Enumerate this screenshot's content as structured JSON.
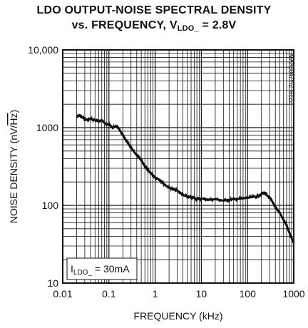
{
  "title": {
    "line1": "LDO OUTPUT-NOISE SPECTRAL DENSITY",
    "line2_prefix": "vs. FREQUENCY, V",
    "line2_sub": "LDO_",
    "line2_suffix": " = 2.8V"
  },
  "watermark": "MAX8847Y/Z toc22",
  "annotation": {
    "prefix": "I",
    "sub": "LDO_",
    "suffix": " = 30mA"
  },
  "chart_data": {
    "type": "line",
    "title": "LDO OUTPUT-NOISE SPECTRAL DENSITY vs. FREQUENCY, VLDO_ = 2.8V",
    "xlabel": "FREQUENCY (kHz)",
    "ylabel": "NOISE DENSITY (nV/√Hz)",
    "x_scale": "log",
    "y_scale": "log",
    "xlim": [
      0.01,
      1000
    ],
    "ylim": [
      10,
      10000
    ],
    "x_ticks": [
      "0.01",
      "0.1",
      "1",
      "10",
      "100",
      "1000"
    ],
    "y_ticks": [
      "10",
      "100",
      "1000",
      "10,000"
    ],
    "grid": true,
    "line_color": "#111111",
    "series": [
      {
        "x": [
          0.02,
          0.023,
          0.026,
          0.03,
          0.035,
          0.04,
          0.05,
          0.06,
          0.07,
          0.08,
          0.1,
          0.12,
          0.15,
          0.2,
          0.25,
          0.3,
          0.4,
          0.5,
          0.6,
          0.7,
          0.8,
          1,
          1.3,
          1.6,
          2,
          2.5,
          3,
          3.5,
          4,
          5,
          6,
          7,
          8,
          10,
          15,
          20,
          30,
          40,
          50,
          70,
          100,
          130,
          160,
          200,
          230,
          260,
          300,
          350,
          400,
          500,
          600,
          700,
          800,
          900,
          1000
        ],
        "y": [
          1350,
          1450,
          1350,
          1300,
          1250,
          1300,
          1250,
          1200,
          1250,
          1150,
          1100,
          1000,
          1050,
          800,
          650,
          550,
          440,
          380,
          320,
          280,
          260,
          230,
          210,
          185,
          170,
          160,
          155,
          145,
          135,
          130,
          125,
          125,
          120,
          122,
          118,
          120,
          115,
          118,
          120,
          122,
          125,
          128,
          130,
          140,
          145,
          135,
          125,
          110,
          95,
          80,
          65,
          55,
          45,
          38,
          33
        ]
      }
    ]
  },
  "axis": {
    "xlabel": "FREQUENCY (kHz)",
    "ylabel_prefix": "NOISE DENSITY (nV/",
    "ylabel_radicand": "Hz",
    "ylabel_suffix": ")"
  }
}
